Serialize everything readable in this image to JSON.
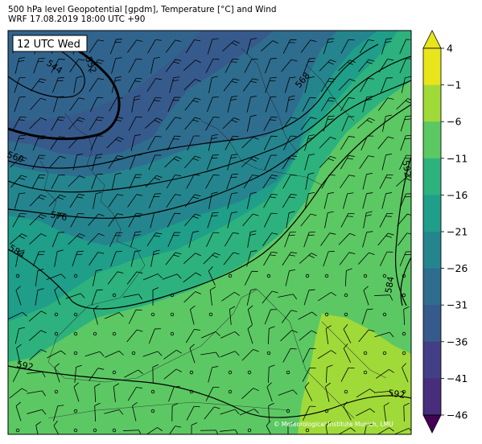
{
  "header": {
    "title_line1": "500 hPa level Geopotential [gpdm], Temperature [°C] and Wind",
    "title_line2": "WRF 17.08.2019 18:00 UTC +90"
  },
  "map": {
    "time_badge": "12 UTC Wed",
    "credit": "© Meteorological Institute Munich, LMU",
    "contour_labels": [
      "544",
      "552",
      "560",
      "568",
      "576",
      "584",
      "592",
      "592",
      "592",
      "584"
    ]
  },
  "colorbar": {
    "tick_labels": [
      "4",
      "−1",
      "−6",
      "−11",
      "−16",
      "−21",
      "−26",
      "−31",
      "−36",
      "−41",
      "−46"
    ],
    "colors": [
      "#e8e51a",
      "#a0da39",
      "#5cc863",
      "#2db27d",
      "#1f9e89",
      "#25858e",
      "#2e6d8e",
      "#375a8c",
      "#433e85",
      "#472d7b",
      "#440154"
    ]
  }
}
